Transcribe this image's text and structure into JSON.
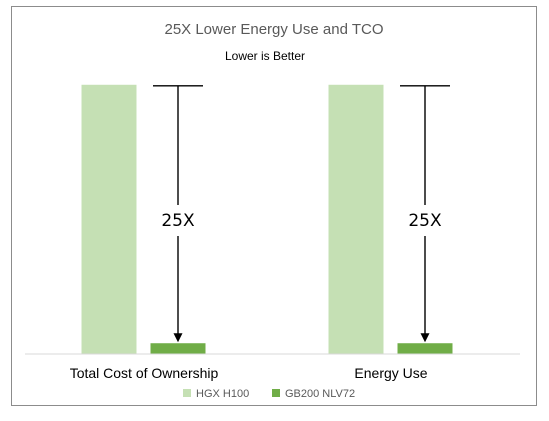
{
  "chart_data": {
    "type": "bar",
    "title": "25X Lower Energy Use and TCO",
    "subtitle": "Lower is Better",
    "categories": [
      "Total Cost of Ownership",
      "Energy Use"
    ],
    "series": [
      {
        "name": "HGX H100",
        "values": [
          25,
          25
        ],
        "color": "#c5e0b4"
      },
      {
        "name": "GB200 NLV72",
        "values": [
          1,
          1
        ],
        "color": "#70ad47"
      }
    ],
    "annotations": [
      {
        "category": "Total Cost of Ownership",
        "label": "25X"
      },
      {
        "category": "Energy Use",
        "label": "25X"
      }
    ],
    "ylim": [
      0,
      26
    ],
    "grid": false,
    "legend_position": "bottom"
  }
}
